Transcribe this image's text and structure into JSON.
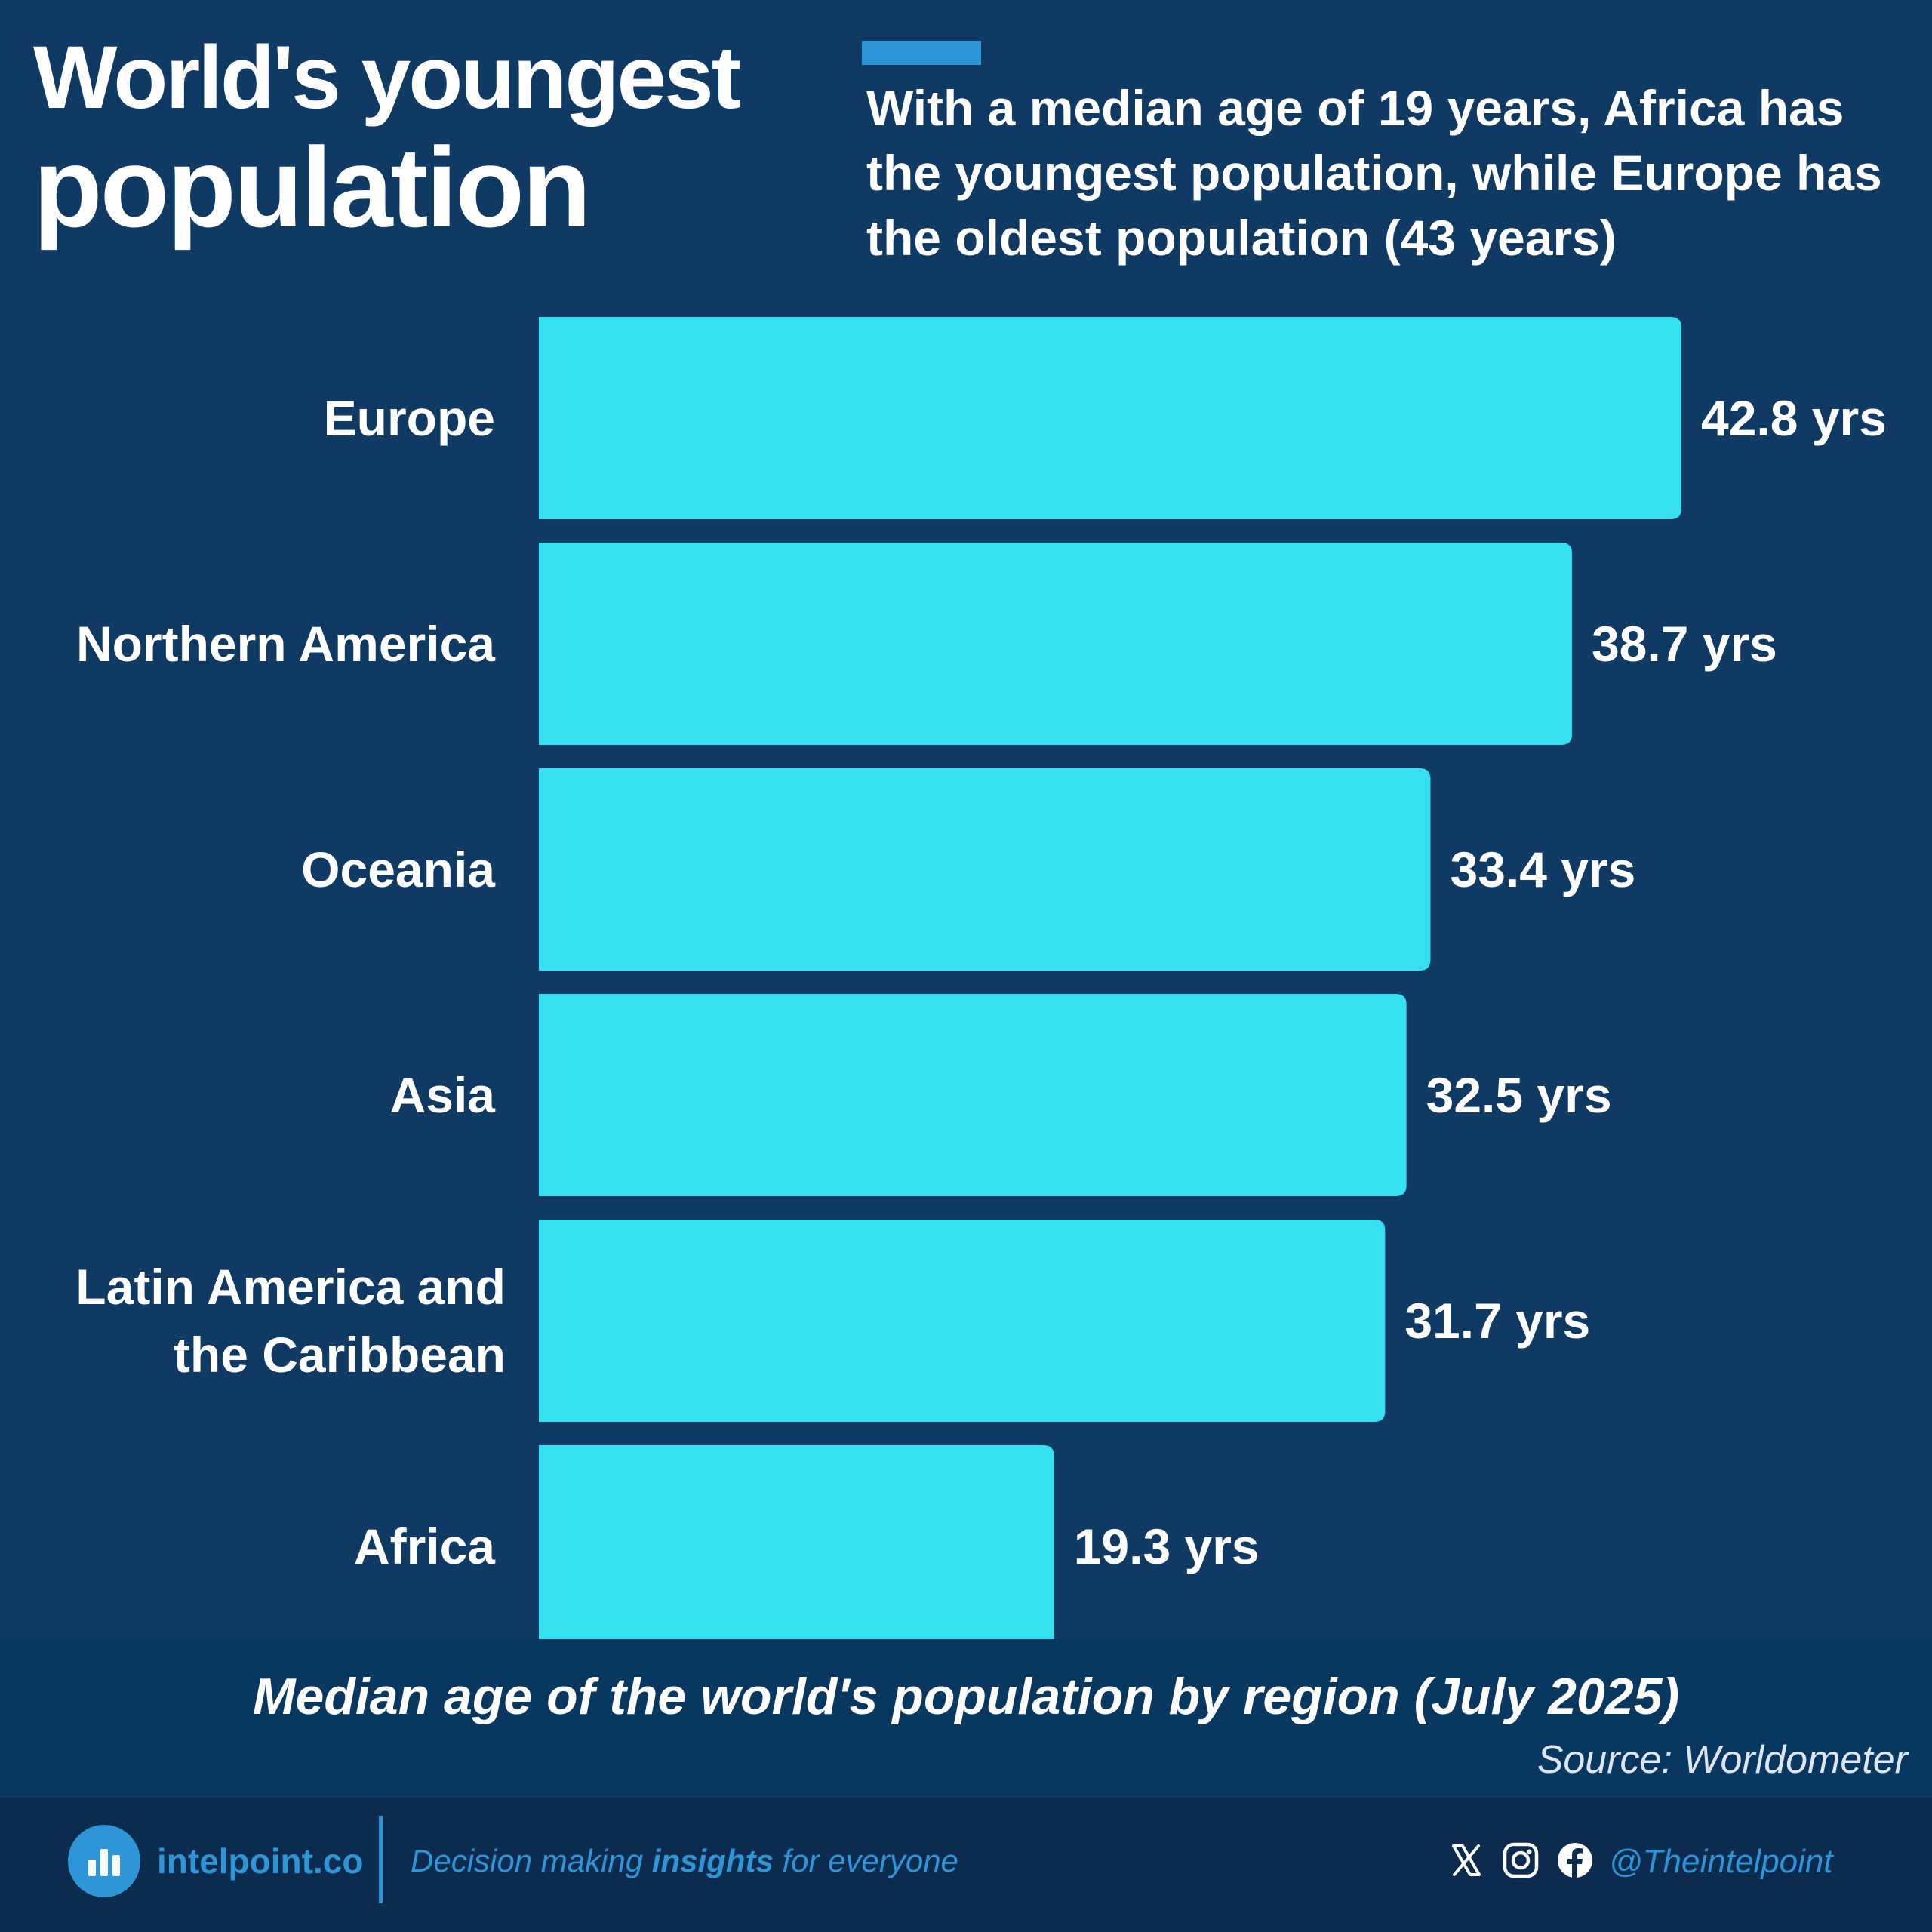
{
  "header": {
    "title_line1": "World's youngest",
    "title_line2": "population",
    "subtitle": "With a median age of 19 years, Africa has the youngest population, while Europe has the oldest population (43 years)"
  },
  "chart_data": {
    "type": "bar",
    "orientation": "horizontal",
    "title": "Median age of the world's population by region (July 2025)",
    "categories": [
      "Europe",
      "Northern America",
      "Oceania",
      "Asia",
      "Latin America and the Caribbean",
      "Africa"
    ],
    "category_label_lines": [
      [
        "Europe"
      ],
      [
        "Northern America"
      ],
      [
        "Oceania"
      ],
      [
        "Asia"
      ],
      [
        "Latin America and",
        "the Caribbean"
      ],
      [
        "Africa"
      ]
    ],
    "values": [
      42.8,
      38.7,
      33.4,
      32.5,
      31.7,
      19.3
    ],
    "value_labels": [
      "42.8 yrs",
      "38.7 yrs",
      "33.4 yrs",
      "32.5 yrs",
      "31.7 yrs",
      "19.3 yrs"
    ],
    "unit": "yrs",
    "xlim": [
      0,
      42.8
    ],
    "grid": false,
    "legend": "none",
    "bar_color": "#35e0f0"
  },
  "caption": "Median age of the world's population by region (July 2025)",
  "source": "Source: Worldometer",
  "footer": {
    "brand": "intelpoint.co",
    "tagline_before": "Decision making ",
    "tagline_bold": "insights",
    "tagline_after": " for everyone",
    "handle": "@Theintelpoint",
    "icons": [
      "x-icon",
      "instagram-icon",
      "facebook-icon"
    ]
  },
  "colors": {
    "background": "#0e3a64",
    "accent": "#2e96d6",
    "bar": "#35e0f0",
    "footer": "#0b2b4f"
  }
}
